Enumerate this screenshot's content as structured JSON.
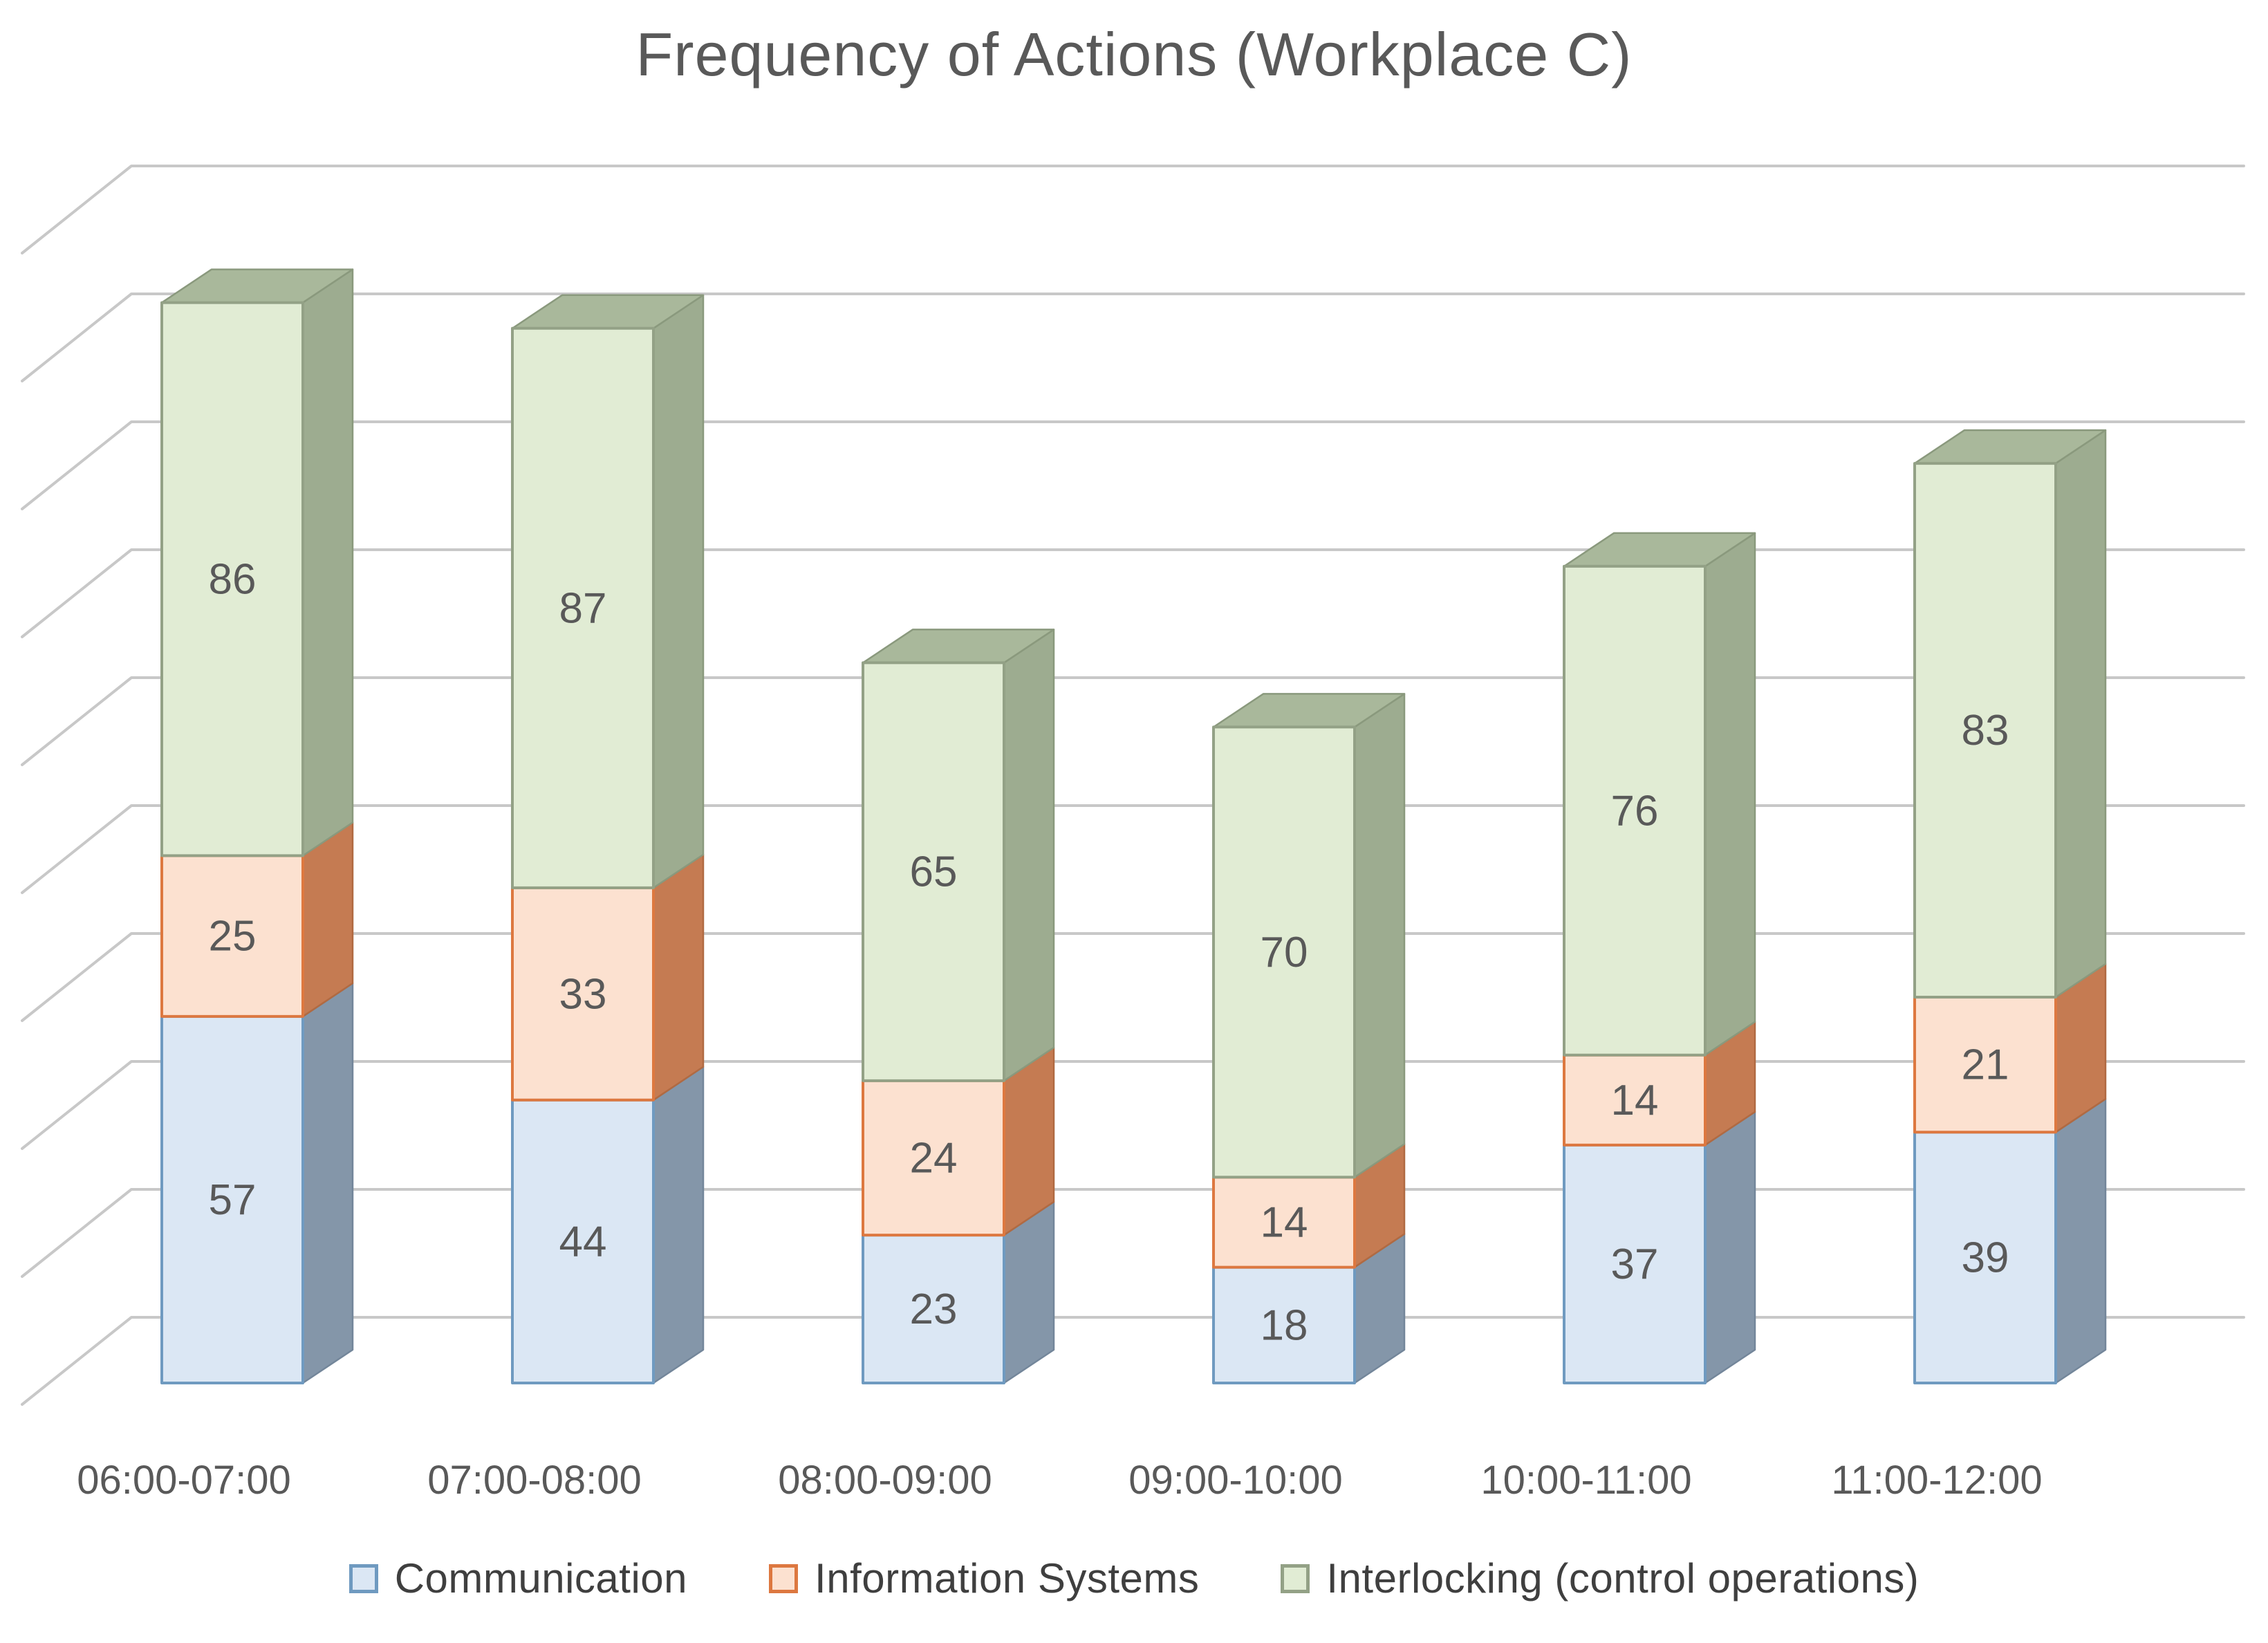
{
  "title": "Frequency of Actions (Workplace C)",
  "chart_data": {
    "type": "bar",
    "variant": "3d-stacked-column",
    "title": "Frequency of Actions (Workplace C)",
    "categories": [
      "06:00-07:00",
      "07:00-08:00",
      "08:00-09:00",
      "09:00-10:00",
      "10:00-11:00",
      "11:00-12:00"
    ],
    "series": [
      {
        "name": "Communication",
        "values": [
          57,
          44,
          23,
          18,
          37,
          39
        ],
        "front": "#dbe7f4",
        "side": "#8496a9",
        "border": "#6f9ac0",
        "side_border": "#73869a"
      },
      {
        "name": "Information Systems",
        "values": [
          25,
          33,
          24,
          14,
          14,
          21
        ],
        "front": "#fce1d0",
        "side": "#c57b52",
        "border": "#dd7840",
        "side_border": "#b06a42"
      },
      {
        "name": "Interlocking (control operations)",
        "values": [
          86,
          87,
          65,
          70,
          76,
          83
        ],
        "front": "#e1ecd4",
        "side": "#9dac90",
        "top": "#a9b89b",
        "border": "#93a186",
        "side_border": "#8a997d"
      }
    ],
    "totals": [
      168,
      164,
      112,
      102,
      127,
      143
    ],
    "xlabel": "",
    "ylabel": "",
    "ylim": [
      0,
      180
    ],
    "gridline_step": 20,
    "grid": true,
    "y_tick_labels_visible": false,
    "data_labels": true,
    "legend_position": "bottom"
  },
  "colors": {
    "background": "#ffffff",
    "grid": "#c8c8c8",
    "title_text": "#595959",
    "axis_text": "#595959",
    "data_label_text": "#595959",
    "legend_text": "#3f3f3f"
  }
}
